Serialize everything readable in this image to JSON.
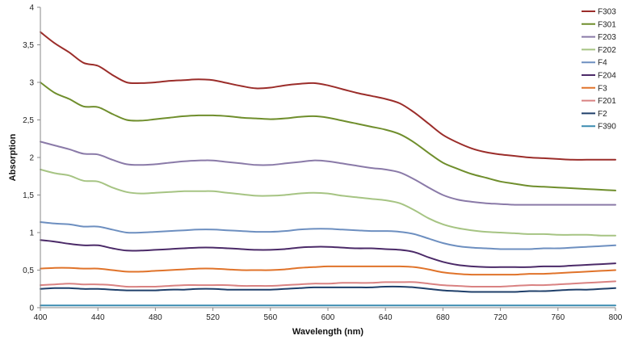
{
  "chart_data": {
    "type": "line",
    "title": "",
    "xlabel": "Wavelength (nm)",
    "ylabel": "Absorption",
    "xlim": [
      400,
      800
    ],
    "ylim": [
      0,
      4
    ],
    "xticks": [
      "400",
      "440",
      "480",
      "520",
      "560",
      "600",
      "640",
      "680",
      "720",
      "760",
      "800"
    ],
    "yticks": [
      "0",
      "0,5",
      "1",
      "1,5",
      "2",
      "2,5",
      "3",
      "3,5",
      "4"
    ],
    "grid": false,
    "legend_position": "top-right",
    "x": [
      400,
      410,
      420,
      430,
      440,
      450,
      460,
      470,
      480,
      490,
      500,
      510,
      520,
      530,
      540,
      550,
      560,
      570,
      580,
      590,
      600,
      610,
      620,
      630,
      640,
      650,
      660,
      670,
      680,
      690,
      700,
      710,
      720,
      730,
      740,
      750,
      760,
      770,
      780,
      790,
      800
    ],
    "series": [
      {
        "name": "F303",
        "color": "#9b2d2a",
        "values": [
          3.67,
          3.52,
          3.4,
          3.26,
          3.22,
          3.1,
          3.0,
          2.99,
          3.0,
          3.02,
          3.03,
          3.04,
          3.03,
          2.99,
          2.95,
          2.92,
          2.93,
          2.96,
          2.98,
          2.99,
          2.96,
          2.91,
          2.86,
          2.82,
          2.78,
          2.72,
          2.6,
          2.45,
          2.3,
          2.2,
          2.12,
          2.07,
          2.04,
          2.02,
          2.0,
          1.99,
          1.98,
          1.97,
          1.97,
          1.97,
          1.97
        ]
      },
      {
        "name": "F301",
        "color": "#6f8e2c",
        "values": [
          3.0,
          2.86,
          2.78,
          2.68,
          2.67,
          2.58,
          2.5,
          2.49,
          2.51,
          2.53,
          2.55,
          2.56,
          2.56,
          2.55,
          2.53,
          2.52,
          2.51,
          2.52,
          2.54,
          2.55,
          2.53,
          2.49,
          2.45,
          2.41,
          2.37,
          2.31,
          2.2,
          2.06,
          1.93,
          1.85,
          1.78,
          1.73,
          1.68,
          1.65,
          1.62,
          1.61,
          1.6,
          1.59,
          1.58,
          1.57,
          1.56
        ]
      },
      {
        "name": "F203",
        "color": "#8a7aa8",
        "values": [
          2.21,
          2.16,
          2.11,
          2.05,
          2.04,
          1.97,
          1.91,
          1.9,
          1.91,
          1.93,
          1.95,
          1.96,
          1.96,
          1.94,
          1.92,
          1.9,
          1.9,
          1.92,
          1.94,
          1.96,
          1.95,
          1.92,
          1.89,
          1.86,
          1.84,
          1.8,
          1.71,
          1.6,
          1.5,
          1.44,
          1.41,
          1.39,
          1.38,
          1.37,
          1.37,
          1.37,
          1.37,
          1.37,
          1.37,
          1.37,
          1.37
        ]
      },
      {
        "name": "F202",
        "color": "#a6c483",
        "values": [
          1.84,
          1.79,
          1.76,
          1.69,
          1.68,
          1.6,
          1.54,
          1.52,
          1.53,
          1.54,
          1.55,
          1.55,
          1.55,
          1.53,
          1.51,
          1.49,
          1.49,
          1.5,
          1.52,
          1.53,
          1.52,
          1.49,
          1.47,
          1.45,
          1.43,
          1.39,
          1.3,
          1.19,
          1.11,
          1.06,
          1.03,
          1.01,
          1.0,
          0.99,
          0.98,
          0.98,
          0.97,
          0.97,
          0.97,
          0.96,
          0.96
        ]
      },
      {
        "name": "F4",
        "color": "#6d8fc0",
        "values": [
          1.14,
          1.12,
          1.11,
          1.08,
          1.08,
          1.04,
          1.0,
          1.0,
          1.01,
          1.02,
          1.03,
          1.04,
          1.04,
          1.03,
          1.02,
          1.01,
          1.01,
          1.02,
          1.04,
          1.05,
          1.05,
          1.04,
          1.03,
          1.02,
          1.02,
          1.01,
          0.98,
          0.92,
          0.86,
          0.82,
          0.8,
          0.79,
          0.78,
          0.78,
          0.78,
          0.79,
          0.79,
          0.8,
          0.81,
          0.82,
          0.83
        ]
      },
      {
        "name": "F204",
        "color": "#4b2a68",
        "values": [
          0.9,
          0.88,
          0.85,
          0.83,
          0.83,
          0.79,
          0.76,
          0.76,
          0.77,
          0.78,
          0.79,
          0.8,
          0.8,
          0.79,
          0.78,
          0.77,
          0.77,
          0.78,
          0.8,
          0.81,
          0.81,
          0.8,
          0.79,
          0.79,
          0.78,
          0.77,
          0.74,
          0.67,
          0.61,
          0.57,
          0.55,
          0.54,
          0.54,
          0.54,
          0.54,
          0.55,
          0.55,
          0.56,
          0.57,
          0.58,
          0.59
        ]
      },
      {
        "name": "F3",
        "color": "#e0732a",
        "values": [
          0.52,
          0.53,
          0.53,
          0.52,
          0.52,
          0.5,
          0.48,
          0.48,
          0.49,
          0.5,
          0.51,
          0.52,
          0.52,
          0.51,
          0.5,
          0.5,
          0.5,
          0.51,
          0.53,
          0.54,
          0.55,
          0.55,
          0.55,
          0.55,
          0.55,
          0.55,
          0.54,
          0.51,
          0.47,
          0.45,
          0.44,
          0.44,
          0.44,
          0.44,
          0.45,
          0.45,
          0.46,
          0.47,
          0.48,
          0.49,
          0.5
        ]
      },
      {
        "name": "F201",
        "color": "#d98282",
        "values": [
          0.3,
          0.31,
          0.32,
          0.31,
          0.31,
          0.3,
          0.28,
          0.28,
          0.28,
          0.29,
          0.3,
          0.3,
          0.3,
          0.3,
          0.29,
          0.29,
          0.29,
          0.3,
          0.31,
          0.32,
          0.32,
          0.33,
          0.33,
          0.33,
          0.34,
          0.34,
          0.34,
          0.32,
          0.3,
          0.29,
          0.28,
          0.28,
          0.28,
          0.29,
          0.3,
          0.3,
          0.31,
          0.32,
          0.33,
          0.34,
          0.35
        ]
      },
      {
        "name": "F2",
        "color": "#1f3f6a",
        "values": [
          0.25,
          0.26,
          0.26,
          0.25,
          0.25,
          0.24,
          0.23,
          0.23,
          0.23,
          0.24,
          0.24,
          0.25,
          0.25,
          0.24,
          0.24,
          0.24,
          0.24,
          0.25,
          0.26,
          0.27,
          0.27,
          0.27,
          0.27,
          0.27,
          0.28,
          0.28,
          0.27,
          0.25,
          0.23,
          0.22,
          0.21,
          0.21,
          0.21,
          0.21,
          0.22,
          0.22,
          0.23,
          0.24,
          0.24,
          0.25,
          0.26
        ]
      },
      {
        "name": "F390",
        "color": "#3a8bb0",
        "values": [
          0.03,
          0.03,
          0.03,
          0.03,
          0.03,
          0.03,
          0.03,
          0.03,
          0.03,
          0.03,
          0.03,
          0.03,
          0.03,
          0.03,
          0.03,
          0.03,
          0.03,
          0.03,
          0.03,
          0.03,
          0.03,
          0.03,
          0.03,
          0.03,
          0.03,
          0.03,
          0.03,
          0.03,
          0.03,
          0.03,
          0.03,
          0.03,
          0.03,
          0.03,
          0.03,
          0.03,
          0.03,
          0.03,
          0.03,
          0.03,
          0.03
        ]
      }
    ]
  }
}
